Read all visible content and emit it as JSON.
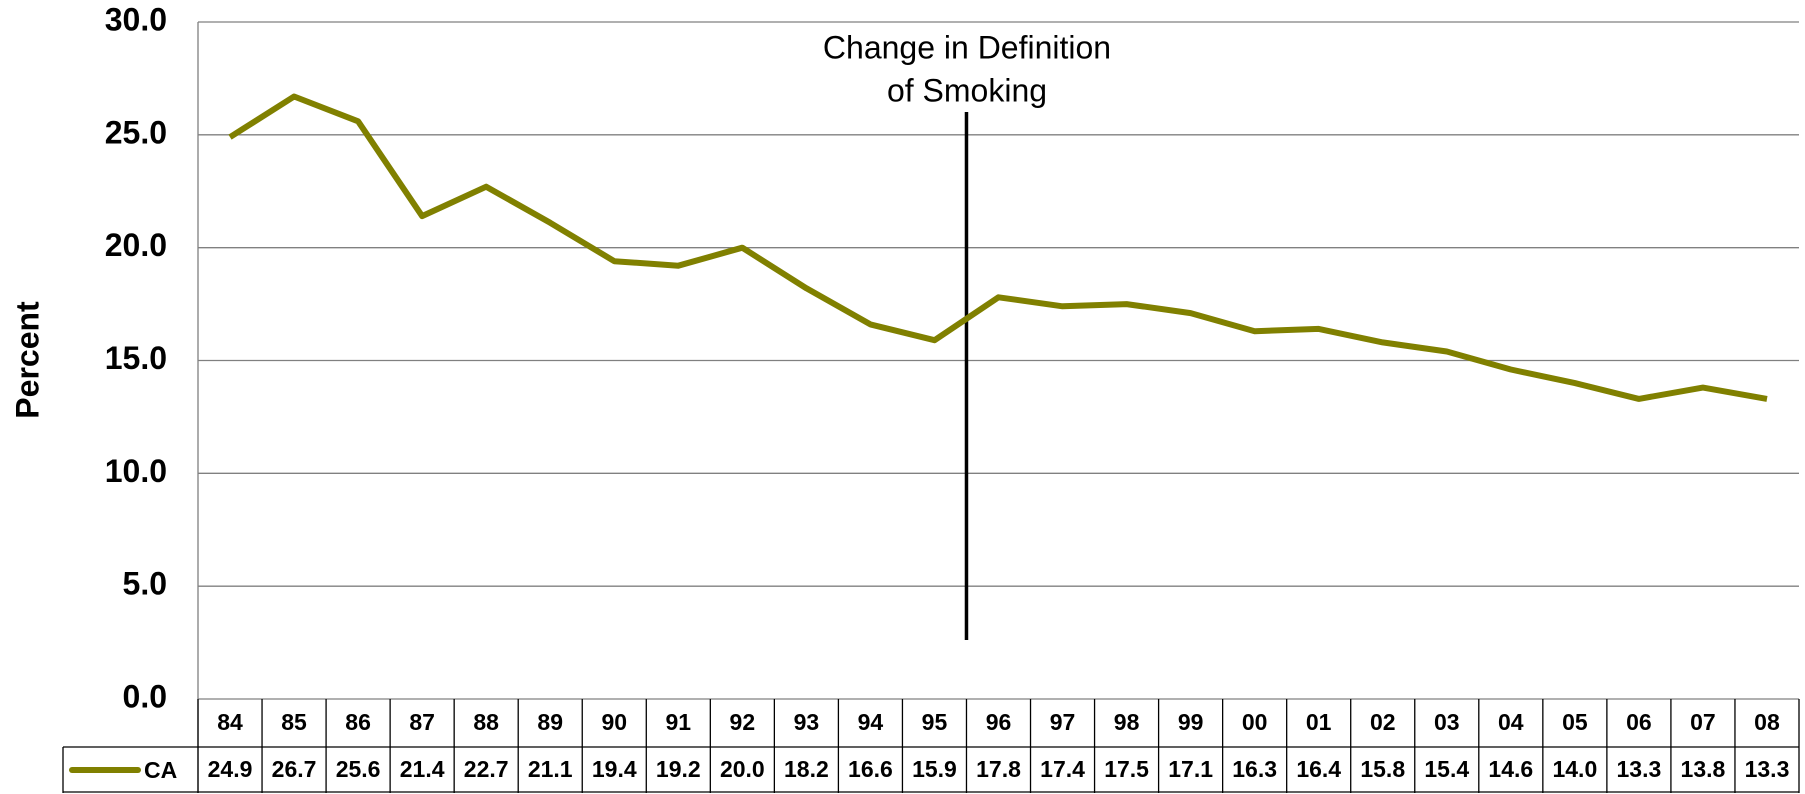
{
  "chart_data": {
    "type": "line",
    "ylabel": "Percent",
    "annotation": {
      "text_lines": [
        "Change in Definition",
        "of Smoking"
      ]
    },
    "categories": [
      "84",
      "85",
      "86",
      "87",
      "88",
      "89",
      "90",
      "91",
      "92",
      "93",
      "94",
      "95",
      "96",
      "97",
      "98",
      "99",
      "00",
      "01",
      "02",
      "03",
      "04",
      "05",
      "06",
      "07",
      "08"
    ],
    "series": [
      {
        "name": "CA",
        "color": "#808000",
        "values": [
          24.9,
          26.7,
          25.6,
          21.4,
          22.7,
          21.1,
          19.4,
          19.2,
          20.0,
          18.2,
          16.6,
          15.9,
          17.8,
          17.4,
          17.5,
          17.1,
          16.3,
          16.4,
          15.8,
          15.4,
          14.6,
          14.0,
          13.3,
          13.8,
          13.3
        ],
        "value_labels": [
          "24.9",
          "26.7",
          "25.6",
          "21.4",
          "22.7",
          "21.1",
          "19.4",
          "19.2",
          "20.0",
          "18.2",
          "16.6",
          "15.9",
          "17.8",
          "17.4",
          "17.5",
          "17.1",
          "16.3",
          "16.4",
          "15.8",
          "15.4",
          "14.6",
          "14.0",
          "13.3",
          "13.8",
          "13.3"
        ]
      }
    ],
    "ylim": [
      0,
      30
    ],
    "yticks": [
      {
        "value": 0,
        "label": "0.0"
      },
      {
        "value": 5,
        "label": "5.0"
      },
      {
        "value": 10,
        "label": "10.0"
      },
      {
        "value": 15,
        "label": "15.0"
      },
      {
        "value": 20,
        "label": "20.0"
      },
      {
        "value": 25,
        "label": "25.0"
      },
      {
        "value": 30,
        "label": "30.0"
      }
    ],
    "grid": true
  }
}
